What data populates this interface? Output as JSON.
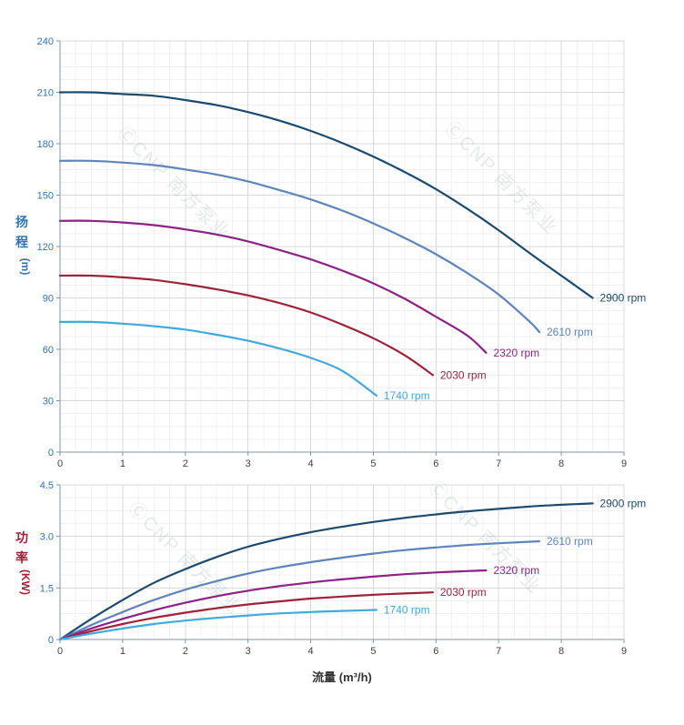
{
  "page": {
    "background": "#ffffff"
  },
  "watermark": {
    "text": "ⒸCNP 南方泵业",
    "color": "#a7b2bf",
    "opacity": 0.28
  },
  "axis": {
    "line_color": "#7e97ad",
    "grid_major": "#d9d9d9",
    "grid_minor": "#f1f1f1",
    "tick_label_color_y": "#2e74b5",
    "tick_label_color_x": "#404040"
  },
  "chart_data": [
    {
      "type": "line",
      "title": "",
      "name": "head-curves",
      "ylabel": "扬程 (m)",
      "ylabel_stack": [
        "扬",
        "程",
        "(m)"
      ],
      "ylabel_color": "#2e74b5",
      "xlabel": "",
      "xlim": [
        0,
        9
      ],
      "ylim": [
        0,
        240
      ],
      "xticks": [
        0,
        1,
        2,
        3,
        4,
        5,
        6,
        7,
        8,
        9
      ],
      "xtick_labels": [
        "0",
        "1",
        "2",
        "3",
        "4",
        "5",
        "6",
        "7",
        "8",
        "9"
      ],
      "yticks": [
        0,
        30,
        60,
        90,
        120,
        150,
        180,
        210,
        240
      ],
      "ytick_labels": [
        "0",
        "30",
        "60",
        "90",
        "120",
        "150",
        "180",
        "210",
        "240"
      ],
      "grid": true,
      "legend_position": "curve-end-labels",
      "series": [
        {
          "name": "2900 rpm",
          "color": "#1b4a6e",
          "points": [
            [
              0,
              210
            ],
            [
              0.5,
              210
            ],
            [
              1,
              209
            ],
            [
              1.5,
              208
            ],
            [
              2,
              205.5
            ],
            [
              2.5,
              202.5
            ],
            [
              3,
              198.5
            ],
            [
              3.5,
              193.5
            ],
            [
              4,
              187.5
            ],
            [
              4.5,
              180.5
            ],
            [
              5,
              172.5
            ],
            [
              5.5,
              163.5
            ],
            [
              6,
              153.5
            ],
            [
              6.5,
              142
            ],
            [
              7,
              129.5
            ],
            [
              7.5,
              116
            ],
            [
              8,
              103
            ],
            [
              8.5,
              90
            ]
          ]
        },
        {
          "name": "2610 rpm",
          "color": "#5e84bc",
          "points": [
            [
              0,
              170
            ],
            [
              0.5,
              170
            ],
            [
              1,
              169
            ],
            [
              1.5,
              167.5
            ],
            [
              2,
              165
            ],
            [
              2.5,
              162
            ],
            [
              3,
              158
            ],
            [
              3.5,
              153
            ],
            [
              4,
              147.5
            ],
            [
              4.5,
              141
            ],
            [
              5,
              133.5
            ],
            [
              5.5,
              125
            ],
            [
              6,
              115.5
            ],
            [
              6.5,
              104.5
            ],
            [
              7,
              92
            ],
            [
              7.5,
              76
            ],
            [
              7.65,
              70
            ]
          ]
        },
        {
          "name": "2320 rpm",
          "color": "#8e2185",
          "points": [
            [
              0,
              135
            ],
            [
              0.5,
              135
            ],
            [
              1,
              134
            ],
            [
              1.5,
              132.5
            ],
            [
              2,
              130
            ],
            [
              2.5,
              127
            ],
            [
              3,
              123
            ],
            [
              3.5,
              118
            ],
            [
              4,
              112.5
            ],
            [
              4.5,
              106
            ],
            [
              5,
              98.5
            ],
            [
              5.5,
              89.5
            ],
            [
              6,
              79
            ],
            [
              6.5,
              68
            ],
            [
              6.8,
              58
            ]
          ]
        },
        {
          "name": "2030 rpm",
          "color": "#9e2239",
          "points": [
            [
              0,
              103
            ],
            [
              0.5,
              103
            ],
            [
              1,
              102
            ],
            [
              1.5,
              100.5
            ],
            [
              2,
              98
            ],
            [
              2.5,
              95
            ],
            [
              3,
              91.5
            ],
            [
              3.5,
              87
            ],
            [
              4,
              81.5
            ],
            [
              4.5,
              74.5
            ],
            [
              5,
              66.5
            ],
            [
              5.5,
              56.5
            ],
            [
              5.95,
              45
            ]
          ]
        },
        {
          "name": "1740 rpm",
          "color": "#41a9dc",
          "points": [
            [
              0,
              76
            ],
            [
              0.5,
              76
            ],
            [
              1,
              75
            ],
            [
              1.5,
              73.5
            ],
            [
              2,
              71.5
            ],
            [
              2.5,
              68.5
            ],
            [
              3,
              65
            ],
            [
              3.5,
              60.5
            ],
            [
              4,
              55
            ],
            [
              4.5,
              47.5
            ],
            [
              5.05,
              33
            ]
          ]
        }
      ]
    },
    {
      "type": "line",
      "title": "",
      "name": "power-curves",
      "ylabel": "功率 (KW)",
      "ylabel_stack": [
        "功",
        "率",
        "(KW)"
      ],
      "ylabel_color": "#9e2239",
      "xlabel": "流量 (m³/h)",
      "xlim": [
        0,
        9
      ],
      "ylim": [
        0,
        4.5
      ],
      "xticks": [
        0,
        1,
        2,
        3,
        4,
        5,
        6,
        7,
        8,
        9
      ],
      "xtick_labels": [
        "0",
        "1",
        "2",
        "3",
        "4",
        "5",
        "6",
        "7",
        "8",
        "9"
      ],
      "yticks": [
        0,
        1.5,
        3,
        4.5
      ],
      "ytick_labels": [
        "0",
        "1.5",
        "3.0",
        "4.5"
      ],
      "grid": true,
      "legend_position": "curve-end-labels",
      "series": [
        {
          "name": "2900 rpm",
          "color": "#1b4a6e",
          "points": [
            [
              0,
              0
            ],
            [
              0.5,
              0.6
            ],
            [
              1,
              1.15
            ],
            [
              1.5,
              1.65
            ],
            [
              2,
              2.05
            ],
            [
              2.5,
              2.4
            ],
            [
              3,
              2.7
            ],
            [
              3.5,
              2.93
            ],
            [
              4,
              3.12
            ],
            [
              4.5,
              3.28
            ],
            [
              5,
              3.42
            ],
            [
              5.5,
              3.54
            ],
            [
              6,
              3.64
            ],
            [
              6.5,
              3.73
            ],
            [
              7,
              3.8
            ],
            [
              7.5,
              3.87
            ],
            [
              8,
              3.92
            ],
            [
              8.5,
              3.96
            ]
          ]
        },
        {
          "name": "2610 rpm",
          "color": "#5e84bc",
          "points": [
            [
              0,
              0
            ],
            [
              0.5,
              0.42
            ],
            [
              1,
              0.8
            ],
            [
              1.5,
              1.15
            ],
            [
              2,
              1.45
            ],
            [
              2.5,
              1.7
            ],
            [
              3,
              1.92
            ],
            [
              3.5,
              2.1
            ],
            [
              4,
              2.25
            ],
            [
              4.5,
              2.38
            ],
            [
              5,
              2.5
            ],
            [
              5.5,
              2.6
            ],
            [
              6,
              2.68
            ],
            [
              6.5,
              2.75
            ],
            [
              7,
              2.8
            ],
            [
              7.65,
              2.86
            ]
          ]
        },
        {
          "name": "2320 rpm",
          "color": "#8e2185",
          "points": [
            [
              0,
              0
            ],
            [
              0.5,
              0.32
            ],
            [
              1,
              0.6
            ],
            [
              1.5,
              0.85
            ],
            [
              2,
              1.07
            ],
            [
              2.5,
              1.26
            ],
            [
              3,
              1.42
            ],
            [
              3.5,
              1.55
            ],
            [
              4,
              1.66
            ],
            [
              4.5,
              1.75
            ],
            [
              5,
              1.83
            ],
            [
              5.5,
              1.9
            ],
            [
              6,
              1.95
            ],
            [
              6.5,
              1.99
            ],
            [
              6.8,
              2.01
            ]
          ]
        },
        {
          "name": "2030 rpm",
          "color": "#9e2239",
          "points": [
            [
              0,
              0
            ],
            [
              0.5,
              0.24
            ],
            [
              1,
              0.45
            ],
            [
              1.5,
              0.63
            ],
            [
              2,
              0.78
            ],
            [
              2.5,
              0.91
            ],
            [
              3,
              1.02
            ],
            [
              3.5,
              1.11
            ],
            [
              4,
              1.19
            ],
            [
              4.5,
              1.25
            ],
            [
              5,
              1.3
            ],
            [
              5.5,
              1.34
            ],
            [
              5.95,
              1.37
            ]
          ]
        },
        {
          "name": "1740 rpm",
          "color": "#41a9dc",
          "points": [
            [
              0,
              0
            ],
            [
              0.5,
              0.17
            ],
            [
              1,
              0.32
            ],
            [
              1.5,
              0.45
            ],
            [
              2,
              0.55
            ],
            [
              2.5,
              0.63
            ],
            [
              3,
              0.7
            ],
            [
              3.5,
              0.76
            ],
            [
              4,
              0.8
            ],
            [
              4.5,
              0.83
            ],
            [
              5.05,
              0.86
            ]
          ]
        }
      ]
    }
  ]
}
